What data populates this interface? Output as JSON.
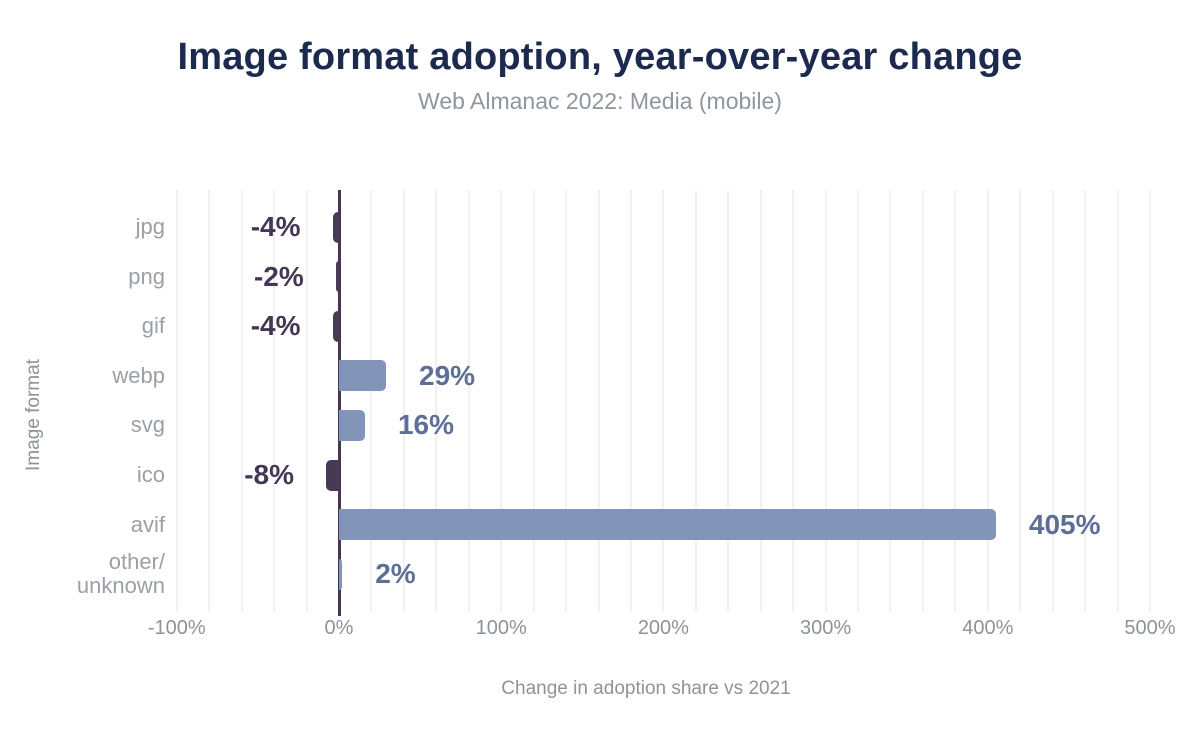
{
  "chart_data": {
    "type": "bar",
    "orientation": "horizontal",
    "title": "Image format adoption, year-over-year change",
    "subtitle": "Web Almanac 2022: Media (mobile)",
    "categories": [
      "jpg",
      "png",
      "gif",
      "webp",
      "svg",
      "ico",
      "avif",
      "other/unknown"
    ],
    "category_display": [
      "jpg",
      "png",
      "gif",
      "webp",
      "svg",
      "ico",
      "avif",
      "other/\nunknown"
    ],
    "values": [
      -4,
      -2,
      -4,
      29,
      16,
      -8,
      405,
      2
    ],
    "value_labels": [
      "-4%",
      "-2%",
      "-4%",
      "29%",
      "16%",
      "-8%",
      "405%",
      "2%"
    ],
    "xlabel": "Change in adoption share vs 2021",
    "ylabel": "Image format",
    "xlim": [
      -100,
      500
    ],
    "xticks": [
      {
        "value": -100,
        "label": "-100%"
      },
      {
        "value": 0,
        "label": "0%"
      },
      {
        "value": 100,
        "label": "100%"
      },
      {
        "value": 200,
        "label": "200%"
      },
      {
        "value": 300,
        "label": "300%"
      },
      {
        "value": 400,
        "label": "400%"
      },
      {
        "value": 500,
        "label": "500%"
      }
    ],
    "grid": {
      "axis": "x",
      "step": 20,
      "on": true
    },
    "legend": {
      "visible": false
    },
    "colors": {
      "page_bg": "#ffffff",
      "title_text": "#1b2a4e",
      "subtitle_text": "#8f969e",
      "category_text": "#9aa0a6",
      "tick_text": "#8d9399",
      "axis_title_text": "#8d9399",
      "positive_bar": "#8295b8",
      "negative_bar": "#473a55",
      "positive_label": "#5d6f97",
      "negative_label": "#453753",
      "gridline": "#f1f1f2",
      "zero_line": "#443651"
    }
  }
}
